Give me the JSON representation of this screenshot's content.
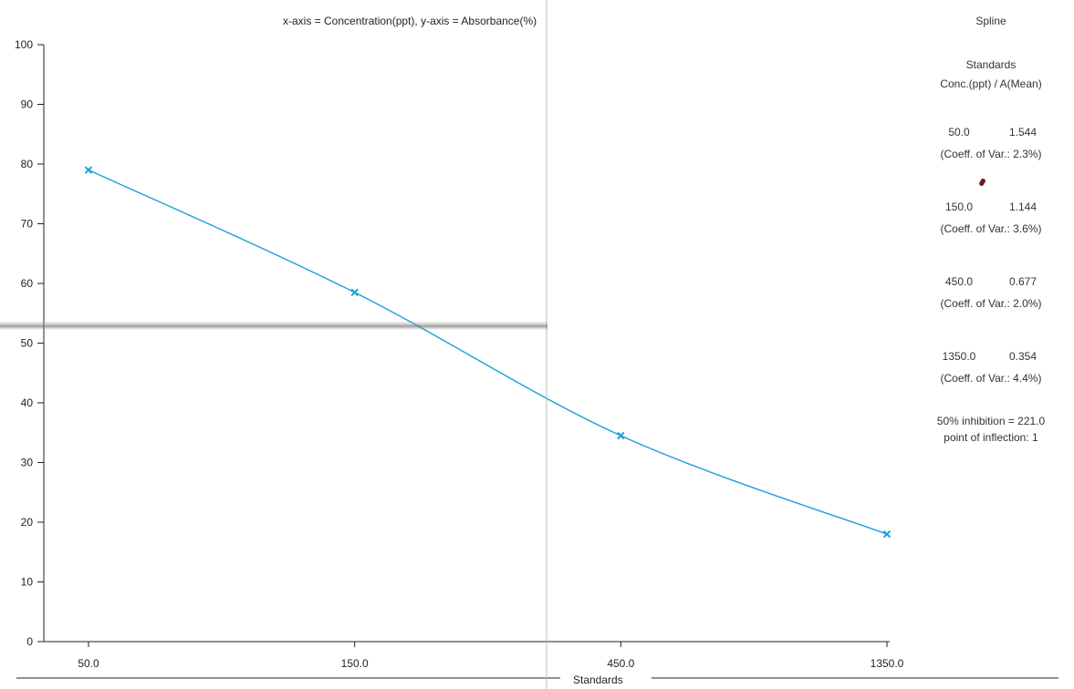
{
  "chart_data": {
    "type": "line",
    "title": "x-axis = Concentration(ppt), y-axis = Absorbance(%)",
    "xlabel": "Standards",
    "ylabel": "",
    "categories": [
      "50.0",
      "150.0",
      "450.0",
      "1350.0"
    ],
    "x_scale": "log",
    "ylim": [
      0,
      100
    ],
    "yticks": [
      0,
      10,
      20,
      30,
      40,
      50,
      60,
      70,
      80,
      90,
      100
    ],
    "grid": false,
    "series": [
      {
        "x": [
          50.0,
          150.0,
          450.0,
          1350.0
        ],
        "values": [
          79.0,
          58.5,
          34.5,
          18.0
        ],
        "color": "#1aa0d8",
        "marker": "x",
        "curve": "spline"
      }
    ]
  },
  "side_panel": {
    "method": "Spline",
    "standards_title": "Standards",
    "standards_header": "Conc.(ppt) / A(Mean)",
    "standards": [
      {
        "conc": "50.0",
        "a_mean": "1.544",
        "cv": "(Coeff. of Var.: 2.3%)"
      },
      {
        "conc": "150.0",
        "a_mean": "1.144",
        "cv": "(Coeff. of Var.: 3.6%)"
      },
      {
        "conc": "450.0",
        "a_mean": "0.677",
        "cv": "(Coeff. of Var.: 2.0%)"
      },
      {
        "conc": "1350.0",
        "a_mean": "0.354",
        "cv": "(Coeff. of Var.: 4.4%)"
      }
    ],
    "inhibition": "50% inhibition = 221.0",
    "inflection": "point of inflection: 1"
  },
  "colors": {
    "curve": "#1aa0d8",
    "axis": "#222222",
    "text": "#222222"
  }
}
